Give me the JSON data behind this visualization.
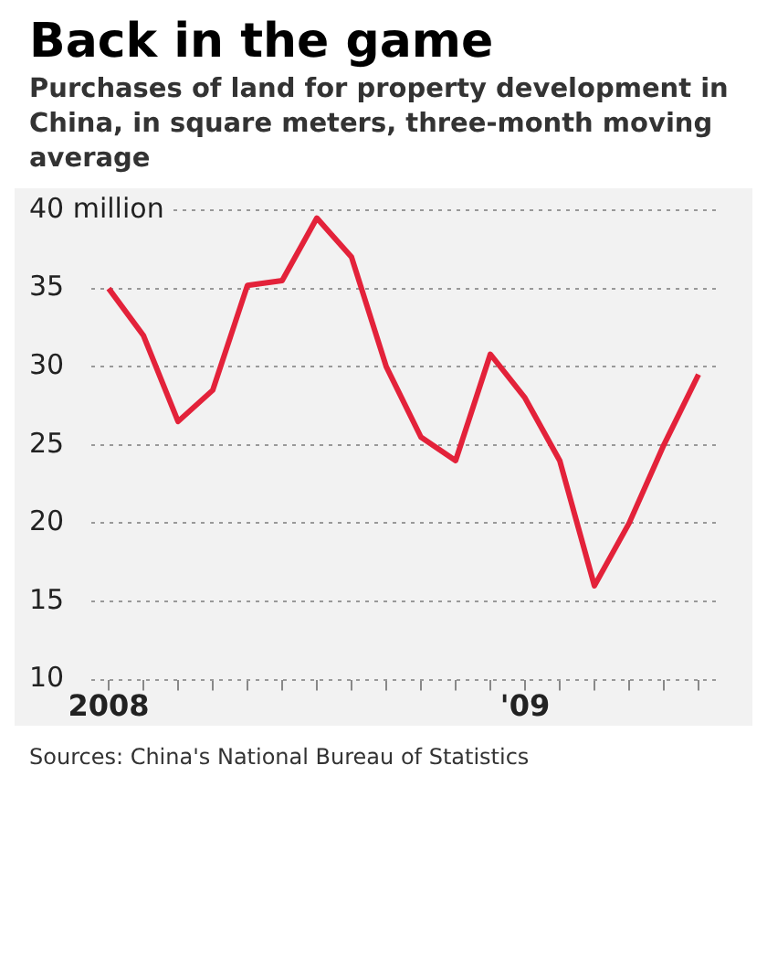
{
  "chart_data": {
    "type": "line",
    "title": "Back in the game",
    "subtitle": "Purchases of land for property development in China, in square meters, three-month moving average",
    "categories": [
      "2008",
      null,
      null,
      null,
      null,
      null,
      null,
      null,
      null,
      null,
      null,
      null,
      "'09",
      null,
      null,
      null,
      null,
      null
    ],
    "series": [
      {
        "color": "#e3223a",
        "values": [
          35,
          32,
          26.5,
          28.5,
          35.2,
          35.5,
          39.5,
          37,
          30,
          25.5,
          24,
          30.8,
          28,
          24,
          16,
          20,
          25,
          29.5
        ]
      }
    ],
    "ylim": [
      10,
      40
    ],
    "yticks": [
      10,
      15,
      20,
      25,
      30,
      35,
      {
        "value": 40,
        "label": "40 million"
      }
    ],
    "grid": "y",
    "legend": false,
    "marker": "none",
    "line_style": "solid",
    "annotations": [
      "Sources: China's National Bureau of Statistics"
    ]
  }
}
